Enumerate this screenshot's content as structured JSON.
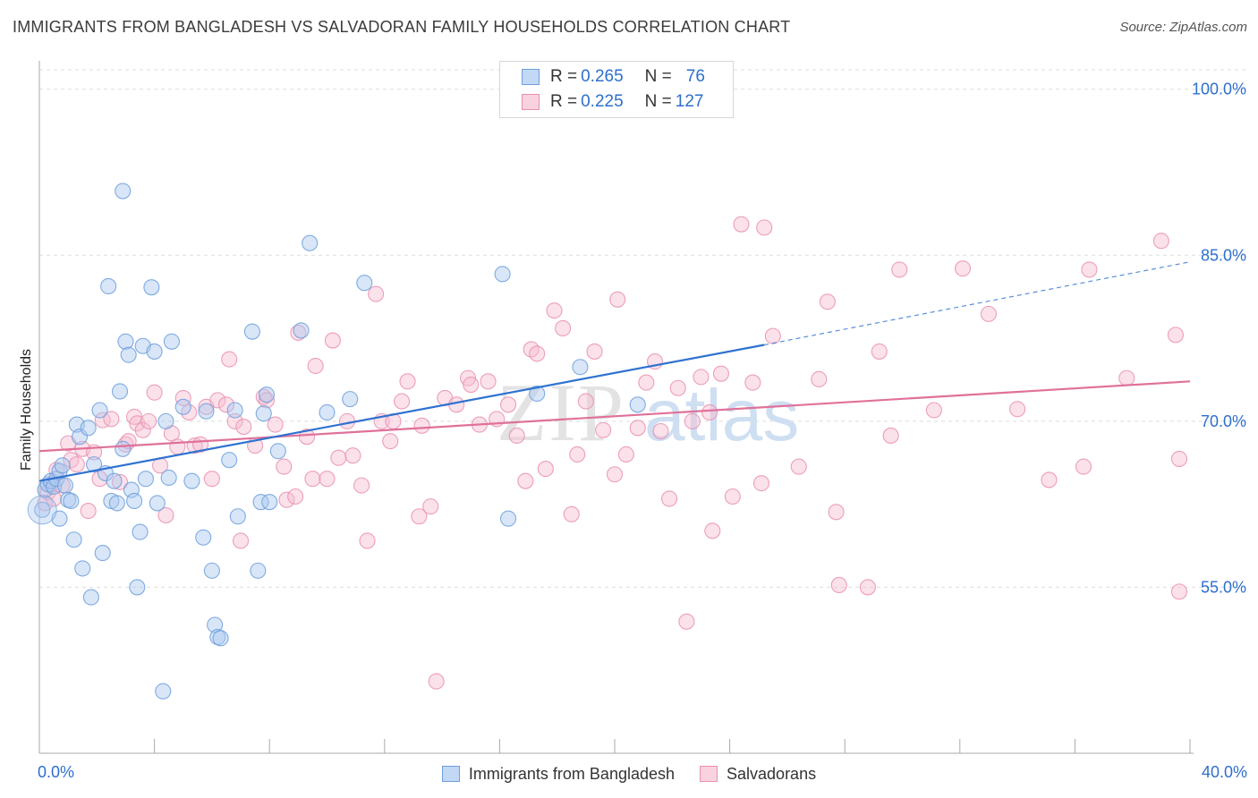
{
  "header": {
    "title": "IMMIGRANTS FROM BANGLADESH VS SALVADORAN FAMILY HOUSEHOLDS CORRELATION CHART",
    "source": "Source: ZipAtlas.com"
  },
  "watermark": {
    "part1": "ZIP",
    "part2": "atlas"
  },
  "legend": {
    "rows": [
      {
        "r_label": "R = ",
        "r_value": "0.265",
        "n_label": "N = ",
        "n_value": "76"
      },
      {
        "r_label": "R = ",
        "r_value": "0.225",
        "n_label": "N = ",
        "n_value": "127"
      }
    ]
  },
  "colors": {
    "blue_fill": "#a9c8f0",
    "blue_stroke": "#6c9fdc",
    "blue_line": "#2f72d0",
    "pink_fill": "#f6bdd0",
    "pink_stroke": "#e98fb0",
    "pink_line": "#e0719a",
    "tick_label": "#2d6fcc",
    "grid": "#dddddd"
  },
  "chart_data": {
    "type": "scatter",
    "title": "IMMIGRANTS FROM BANGLADESH VS SALVADORAN FAMILY HOUSEHOLDS CORRELATION CHART",
    "xlabel": "",
    "ylabel": "Family Households",
    "xlim": [
      0,
      40
    ],
    "ylim": [
      40,
      102
    ],
    "x_tick_labels": [
      {
        "value": 0,
        "label": "0.0%"
      },
      {
        "value": 40,
        "label": "40.0%"
      }
    ],
    "y_ticks": [
      {
        "value": 100,
        "label": "100.0%"
      },
      {
        "value": 85,
        "label": "85.0%"
      },
      {
        "value": 70,
        "label": "70.0%"
      },
      {
        "value": 55,
        "label": "55.0%"
      }
    ],
    "x_minor_ticks": [
      4,
      8,
      12,
      16,
      20,
      24,
      28,
      32,
      36,
      40
    ],
    "grid": true,
    "legend_position": "top-center",
    "series": [
      {
        "name": "Immigrants from Bangladesh",
        "color": "#a9c8f0",
        "trend": {
          "x0": 0,
          "y0": 64.6,
          "x1": 25.2,
          "y1": 76.9,
          "dashed_to_x": 40,
          "dashed_to_y": 84.4
        },
        "points": [
          [
            0.2,
            63.8
          ],
          [
            0.3,
            64.3
          ],
          [
            0.4,
            64.6
          ],
          [
            0.5,
            64.1
          ],
          [
            0.6,
            64.8
          ],
          [
            0.7,
            65.5
          ],
          [
            0.8,
            66.0
          ],
          [
            0.7,
            61.2
          ],
          [
            0.9,
            64.2
          ],
          [
            1.0,
            62.9
          ],
          [
            1.1,
            62.8
          ],
          [
            1.2,
            59.3
          ],
          [
            1.3,
            69.7
          ],
          [
            1.4,
            68.6
          ],
          [
            1.5,
            56.7
          ],
          [
            1.7,
            69.4
          ],
          [
            1.8,
            54.1
          ],
          [
            1.9,
            66.1
          ],
          [
            2.1,
            71.0
          ],
          [
            2.2,
            58.1
          ],
          [
            2.3,
            65.3
          ],
          [
            2.5,
            62.8
          ],
          [
            2.6,
            64.6
          ],
          [
            2.7,
            62.6
          ],
          [
            2.8,
            72.7
          ],
          [
            2.9,
            67.5
          ],
          [
            2.9,
            90.8
          ],
          [
            3.0,
            77.2
          ],
          [
            3.1,
            76.0
          ],
          [
            3.2,
            63.8
          ],
          [
            3.3,
            62.8
          ],
          [
            3.4,
            55.0
          ],
          [
            3.5,
            60.0
          ],
          [
            3.6,
            76.8
          ],
          [
            3.7,
            64.8
          ],
          [
            3.9,
            82.1
          ],
          [
            4.0,
            76.3
          ],
          [
            4.1,
            62.6
          ],
          [
            4.3,
            45.6
          ],
          [
            4.4,
            70.0
          ],
          [
            4.5,
            64.9
          ],
          [
            4.6,
            77.2
          ],
          [
            2.4,
            82.2
          ],
          [
            5.0,
            71.3
          ],
          [
            5.3,
            64.6
          ],
          [
            5.7,
            59.5
          ],
          [
            5.8,
            70.9
          ],
          [
            6.0,
            56.5
          ],
          [
            6.1,
            51.6
          ],
          [
            6.2,
            50.5
          ],
          [
            6.3,
            50.4
          ],
          [
            6.6,
            66.5
          ],
          [
            6.8,
            71.0
          ],
          [
            6.9,
            61.4
          ],
          [
            7.4,
            78.1
          ],
          [
            7.6,
            56.5
          ],
          [
            7.7,
            62.7
          ],
          [
            7.8,
            70.7
          ],
          [
            7.9,
            72.4
          ],
          [
            8.0,
            62.7
          ],
          [
            8.3,
            67.3
          ],
          [
            9.1,
            78.2
          ],
          [
            9.4,
            86.1
          ],
          [
            10.0,
            70.8
          ],
          [
            10.8,
            72.0
          ],
          [
            11.3,
            82.5
          ],
          [
            16.1,
            83.3
          ],
          [
            16.3,
            61.2
          ],
          [
            17.3,
            72.5
          ],
          [
            18.8,
            74.9
          ],
          [
            20.8,
            71.5
          ],
          [
            0.1,
            62.0
          ]
        ]
      },
      {
        "name": "Salvadorans",
        "color": "#f6bdd0",
        "trend": {
          "x0": 0,
          "y0": 67.3,
          "x1": 40,
          "y1": 73.6
        },
        "points": [
          [
            0.2,
            62.6
          ],
          [
            0.3,
            63.6
          ],
          [
            0.4,
            64.3
          ],
          [
            0.5,
            63.0
          ],
          [
            0.6,
            65.6
          ],
          [
            0.8,
            64.2
          ],
          [
            1.0,
            68.0
          ],
          [
            1.1,
            66.5
          ],
          [
            1.3,
            66.1
          ],
          [
            1.5,
            67.5
          ],
          [
            1.7,
            61.9
          ],
          [
            1.9,
            67.2
          ],
          [
            2.1,
            64.8
          ],
          [
            2.2,
            70.1
          ],
          [
            2.5,
            70.2
          ],
          [
            2.8,
            64.5
          ],
          [
            3.0,
            67.9
          ],
          [
            3.1,
            68.2
          ],
          [
            3.3,
            70.4
          ],
          [
            3.4,
            69.8
          ],
          [
            3.6,
            69.2
          ],
          [
            3.8,
            70.0
          ],
          [
            4.0,
            72.6
          ],
          [
            4.2,
            66.0
          ],
          [
            4.4,
            61.5
          ],
          [
            4.6,
            68.9
          ],
          [
            4.8,
            67.7
          ],
          [
            5.0,
            72.1
          ],
          [
            5.2,
            70.8
          ],
          [
            5.4,
            67.8
          ],
          [
            5.6,
            67.9
          ],
          [
            5.8,
            71.3
          ],
          [
            6.0,
            64.8
          ],
          [
            6.2,
            71.9
          ],
          [
            6.5,
            71.5
          ],
          [
            6.6,
            75.6
          ],
          [
            6.8,
            70.0
          ],
          [
            7.0,
            59.2
          ],
          [
            7.1,
            69.5
          ],
          [
            7.5,
            67.8
          ],
          [
            7.8,
            72.2
          ],
          [
            7.9,
            71.9
          ],
          [
            8.2,
            69.7
          ],
          [
            8.5,
            65.9
          ],
          [
            8.6,
            62.9
          ],
          [
            8.9,
            63.2
          ],
          [
            9.0,
            78.0
          ],
          [
            9.3,
            68.6
          ],
          [
            9.5,
            64.8
          ],
          [
            9.6,
            75.0
          ],
          [
            10.0,
            64.8
          ],
          [
            10.2,
            77.3
          ],
          [
            10.4,
            66.7
          ],
          [
            10.7,
            70.0
          ],
          [
            10.9,
            66.9
          ],
          [
            11.2,
            64.2
          ],
          [
            11.4,
            59.2
          ],
          [
            11.7,
            81.5
          ],
          [
            11.9,
            70.0
          ],
          [
            12.2,
            68.2
          ],
          [
            12.3,
            70.0
          ],
          [
            12.6,
            71.8
          ],
          [
            12.8,
            73.6
          ],
          [
            13.2,
            61.4
          ],
          [
            13.3,
            69.6
          ],
          [
            13.6,
            62.3
          ],
          [
            13.8,
            46.5
          ],
          [
            14.1,
            72.1
          ],
          [
            14.5,
            71.5
          ],
          [
            14.9,
            73.9
          ],
          [
            15.0,
            73.3
          ],
          [
            15.3,
            69.7
          ],
          [
            15.6,
            73.6
          ],
          [
            15.9,
            70.2
          ],
          [
            16.3,
            71.5
          ],
          [
            16.6,
            68.7
          ],
          [
            16.9,
            64.6
          ],
          [
            17.1,
            76.5
          ],
          [
            17.3,
            76.1
          ],
          [
            17.6,
            65.7
          ],
          [
            17.9,
            80.0
          ],
          [
            18.2,
            78.4
          ],
          [
            18.5,
            61.6
          ],
          [
            18.7,
            67.0
          ],
          [
            19.0,
            71.8
          ],
          [
            19.3,
            76.3
          ],
          [
            19.6,
            69.2
          ],
          [
            20.0,
            65.2
          ],
          [
            20.1,
            81.0
          ],
          [
            20.4,
            67.0
          ],
          [
            20.8,
            69.4
          ],
          [
            21.1,
            73.5
          ],
          [
            21.4,
            75.4
          ],
          [
            21.6,
            69.1
          ],
          [
            21.9,
            63.0
          ],
          [
            22.2,
            73.0
          ],
          [
            22.5,
            51.9
          ],
          [
            22.7,
            70.0
          ],
          [
            23.0,
            74.0
          ],
          [
            23.3,
            70.8
          ],
          [
            23.4,
            60.1
          ],
          [
            23.7,
            74.3
          ],
          [
            24.1,
            63.2
          ],
          [
            24.4,
            87.8
          ],
          [
            24.8,
            73.5
          ],
          [
            25.1,
            64.4
          ],
          [
            25.2,
            87.5
          ],
          [
            25.5,
            77.7
          ],
          [
            26.4,
            65.9
          ],
          [
            27.1,
            73.8
          ],
          [
            27.4,
            80.8
          ],
          [
            27.7,
            61.8
          ],
          [
            27.8,
            55.2
          ],
          [
            28.8,
            55.0
          ],
          [
            29.2,
            76.3
          ],
          [
            29.6,
            68.7
          ],
          [
            29.9,
            83.7
          ],
          [
            31.1,
            71.0
          ],
          [
            32.1,
            83.8
          ],
          [
            33.0,
            79.7
          ],
          [
            34.0,
            71.1
          ],
          [
            35.1,
            64.7
          ],
          [
            36.3,
            65.9
          ],
          [
            36.5,
            83.7
          ],
          [
            37.8,
            73.9
          ],
          [
            39.0,
            86.3
          ],
          [
            39.5,
            77.8
          ],
          [
            39.7,
            54.6
          ],
          [
            40.9,
            66.6
          ]
        ]
      }
    ]
  },
  "bottom_legend": {
    "items": [
      {
        "label": "Immigrants from Bangladesh"
      },
      {
        "label": "Salvadorans"
      }
    ]
  }
}
